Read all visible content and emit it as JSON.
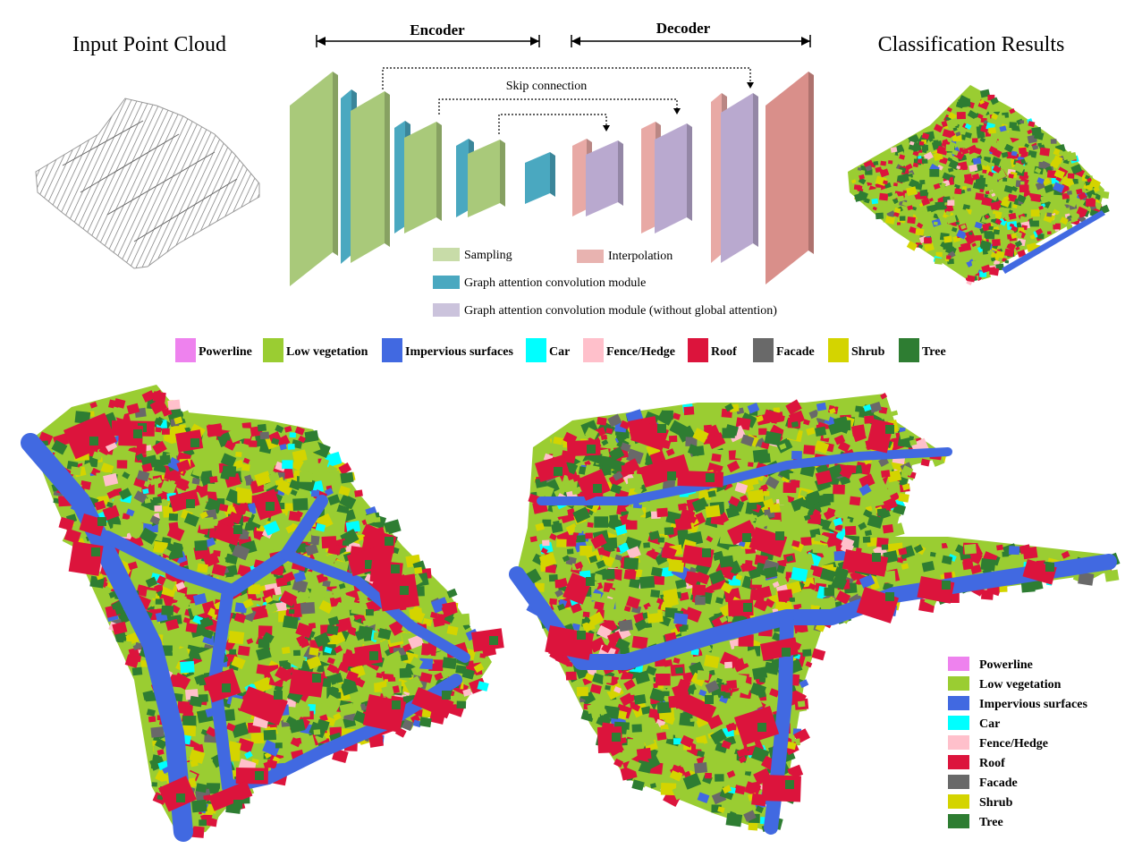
{
  "titles": {
    "input": "Input Point Cloud",
    "output": "Classification Results",
    "encoder": "Encoder",
    "decoder": "Decoder",
    "skip": "Skip connection"
  },
  "network_legend": {
    "sampling": "Sampling",
    "interpolation": "Interpolation",
    "gac": "Graph attention convolution module",
    "gac_noglobal": "Graph attention convolution module (without global attention)"
  },
  "classes": [
    {
      "name": "Powerline",
      "color": "#ee82ee"
    },
    {
      "name": "Low vegetation",
      "color": "#9acd32"
    },
    {
      "name": "Impervious surfaces",
      "color": "#4169e1"
    },
    {
      "name": "Car",
      "color": "#00ffff"
    },
    {
      "name": "Fence/Hedge",
      "color": "#ffc0cb"
    },
    {
      "name": "Roof",
      "color": "#dc143c"
    },
    {
      "name": "Facade",
      "color": "#696969"
    },
    {
      "name": "Shrub",
      "color": "#d4d400"
    },
    {
      "name": "Tree",
      "color": "#2e7d32"
    }
  ],
  "colors": {
    "sampling": "#a9c97a",
    "gac": "#4aa8c0",
    "interpolation": "#e8a9a5",
    "gac_noglobal": "#b9a9cf",
    "final": "#d98f8a"
  }
}
